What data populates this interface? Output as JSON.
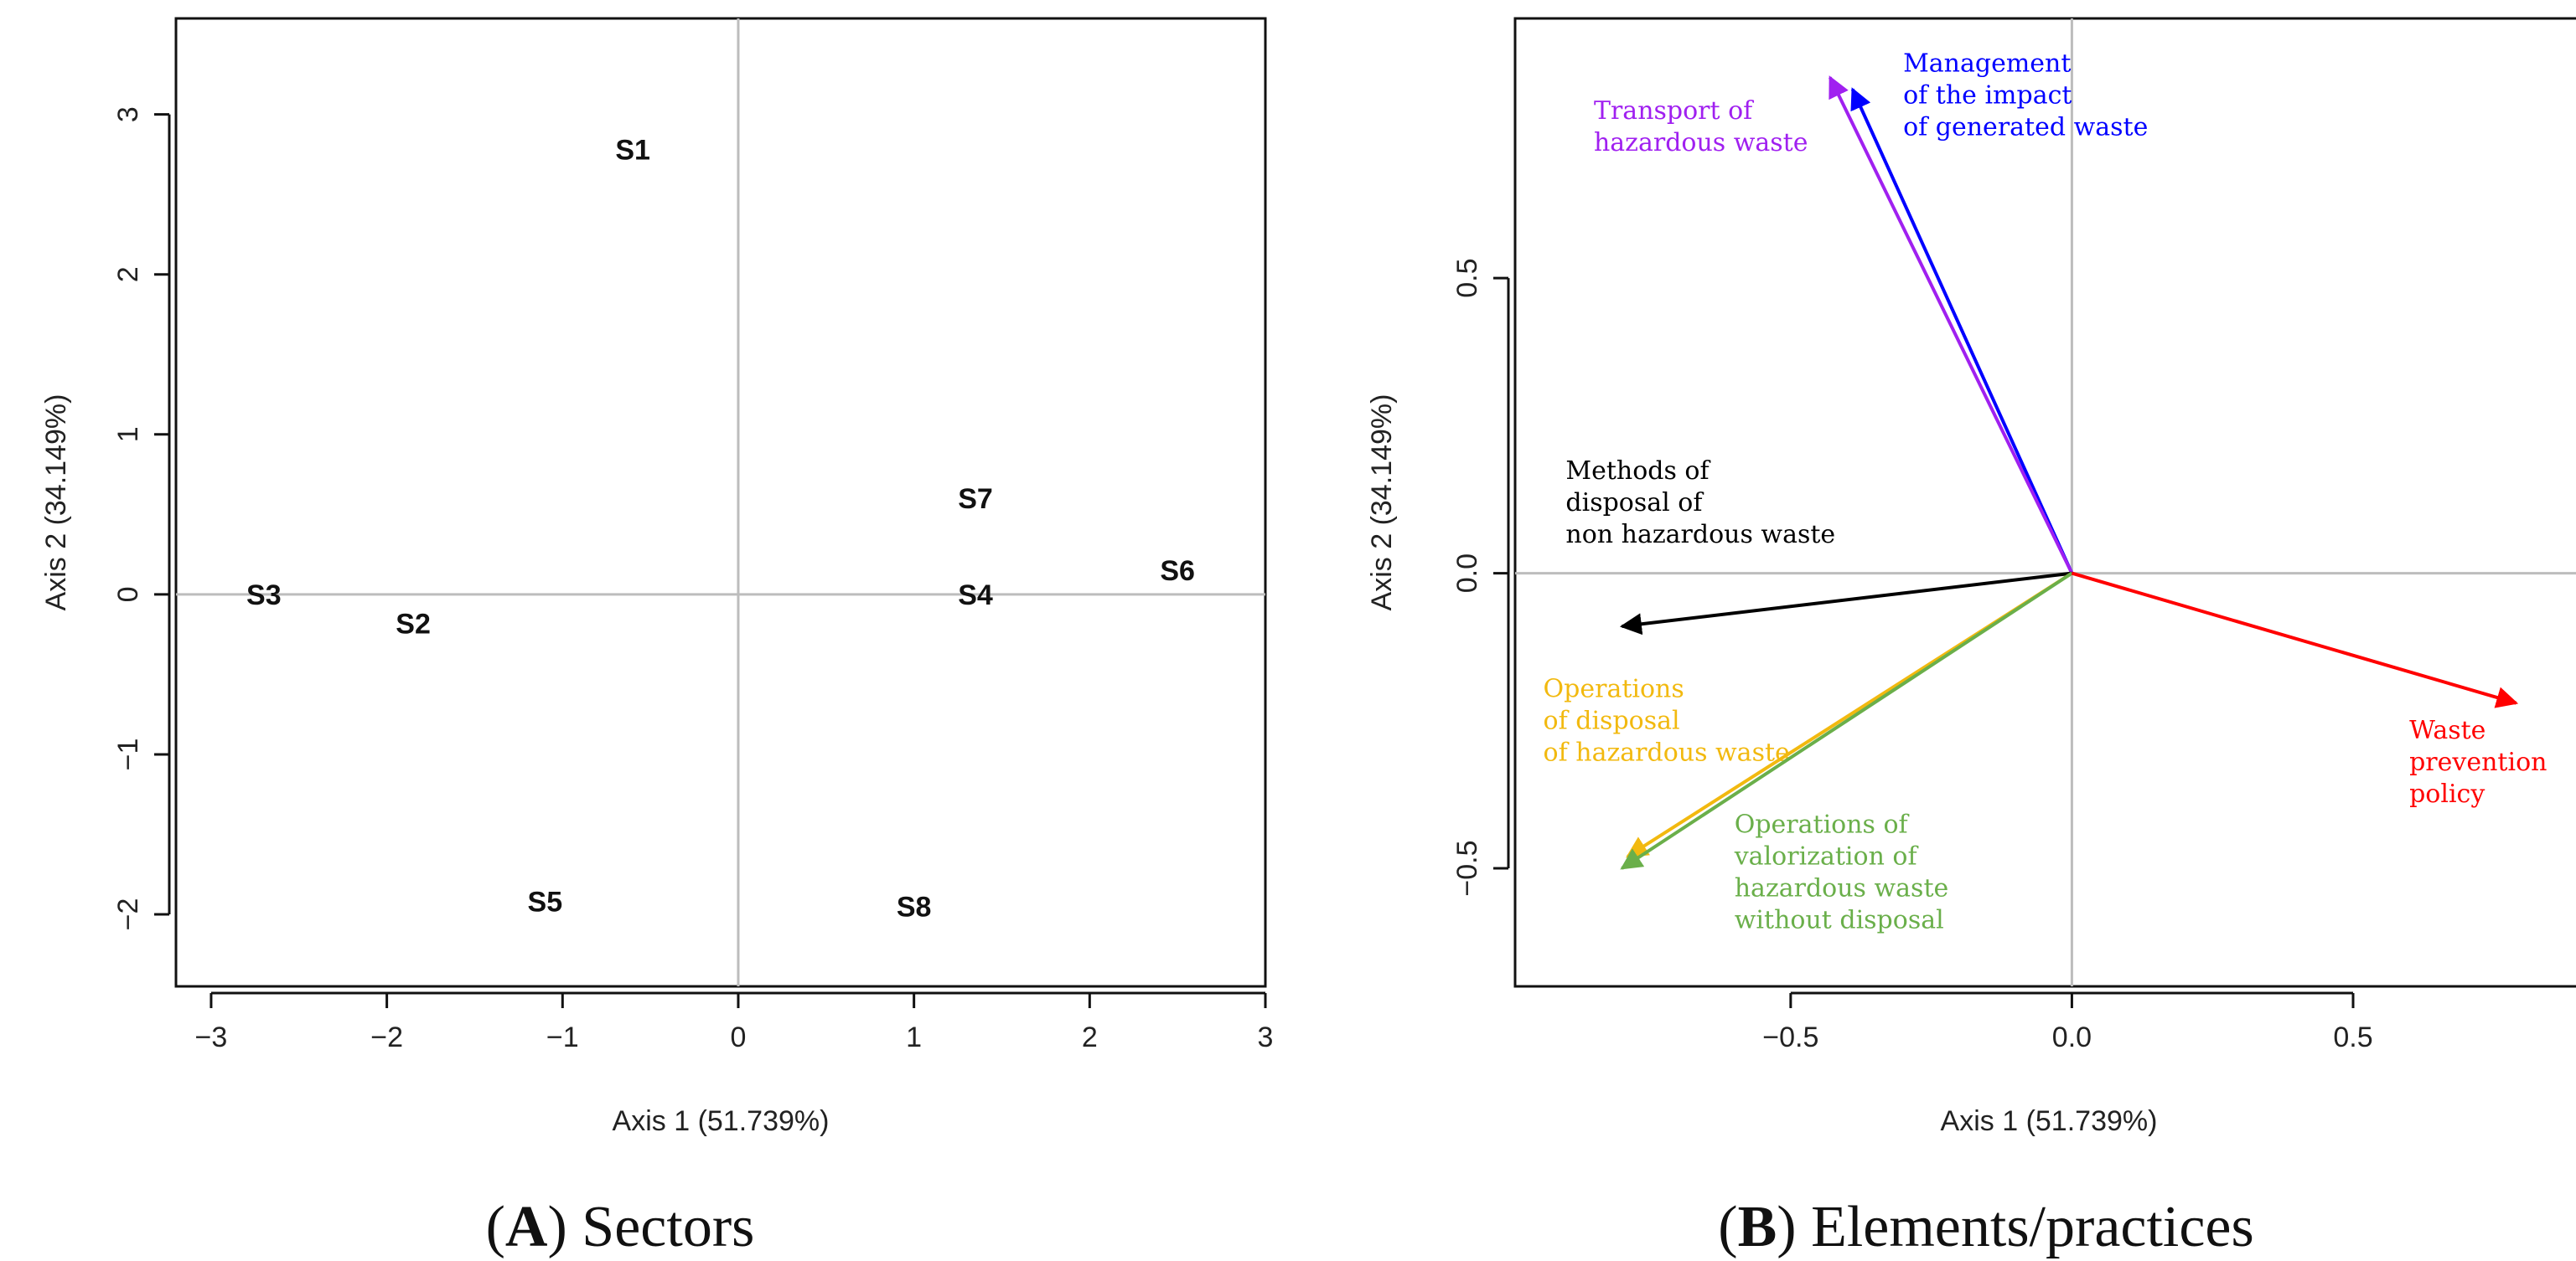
{
  "chart_data": [
    {
      "type": "scatter",
      "panel": "A",
      "caption_letter": "A",
      "caption_text": "Sectors",
      "xlabel": "Axis 1 (51.739%)",
      "ylabel": "Axis 2 (34.149%)",
      "xlim": [
        -3.2,
        3.0
      ],
      "ylim": [
        -2.45,
        3.6
      ],
      "xticks": [
        -3,
        -2,
        -1,
        0,
        1,
        2,
        3
      ],
      "yticks": [
        -2,
        -1,
        0,
        1,
        2,
        3
      ],
      "xtick_labels": [
        "−3",
        "−2",
        "−1",
        "0",
        "1",
        "2",
        "3"
      ],
      "ytick_labels": [
        "−2",
        "−1",
        "0",
        "1",
        "2",
        "3"
      ],
      "points": [
        {
          "label": "S1",
          "x": -0.6,
          "y": 2.78
        },
        {
          "label": "S2",
          "x": -1.85,
          "y": -0.18
        },
        {
          "label": "S3",
          "x": -2.7,
          "y": 0.0
        },
        {
          "label": "S4",
          "x": 1.35,
          "y": 0.0
        },
        {
          "label": "S5",
          "x": -1.1,
          "y": -1.92
        },
        {
          "label": "S6",
          "x": 2.5,
          "y": 0.15
        },
        {
          "label": "S7",
          "x": 1.35,
          "y": 0.6
        },
        {
          "label": "S8",
          "x": 1.0,
          "y": -1.95
        }
      ]
    },
    {
      "type": "biplot-vectors",
      "panel": "B",
      "caption_letter": "B",
      "caption_text": "Elements/practices",
      "xlabel": "Axis 1 (51.739%)",
      "ylabel": "Axis 2 (34.149%)",
      "xlim": [
        -0.99,
        0.95
      ],
      "ylim": [
        -0.7,
        0.94
      ],
      "xticks": [
        -0.5,
        0.0,
        0.5
      ],
      "yticks": [
        -0.5,
        0.0,
        0.5
      ],
      "xtick_labels": [
        "−0.5",
        "0.0",
        "0.5"
      ],
      "ytick_labels": [
        "−0.5",
        "0.0",
        "0.5"
      ],
      "vectors": [
        {
          "name": "management",
          "lines": [
            "Management",
            "of the impact",
            "of generated waste"
          ],
          "x": -0.39,
          "y": 0.82,
          "color": "#0000ff",
          "label_x": -0.3,
          "label_y": 0.85,
          "anchor": "start"
        },
        {
          "name": "transport",
          "lines": [
            "Transport of",
            "hazardous waste"
          ],
          "x": -0.43,
          "y": 0.84,
          "color": "#a020f0",
          "label_x": -0.85,
          "label_y": 0.77,
          "anchor": "start"
        },
        {
          "name": "methods-disposal",
          "lines": [
            "Methods of",
            "disposal of",
            "non hazardous waste"
          ],
          "x": -0.8,
          "y": -0.09,
          "color": "#000000",
          "label_x": -0.9,
          "label_y": 0.16,
          "anchor": "start"
        },
        {
          "name": "operations-disposal",
          "lines": [
            "Operations",
            "of disposal",
            "of hazardous waste"
          ],
          "x": -0.79,
          "y": -0.48,
          "color": "#f2b90f",
          "label_x": -0.94,
          "label_y": -0.21,
          "anchor": "start"
        },
        {
          "name": "operations-valorization",
          "lines": [
            "Operations of",
            "valorization of",
            "hazardous waste",
            "without disposal"
          ],
          "x": -0.8,
          "y": -0.5,
          "color": "#6aaf4a",
          "label_x": -0.6,
          "label_y": -0.44,
          "anchor": "start"
        },
        {
          "name": "waste-prevention",
          "lines": [
            "Waste",
            "prevention",
            "policy"
          ],
          "x": 0.79,
          "y": -0.22,
          "color": "#ff0000",
          "label_x": 0.6,
          "label_y": -0.28,
          "anchor": "start"
        }
      ]
    }
  ]
}
